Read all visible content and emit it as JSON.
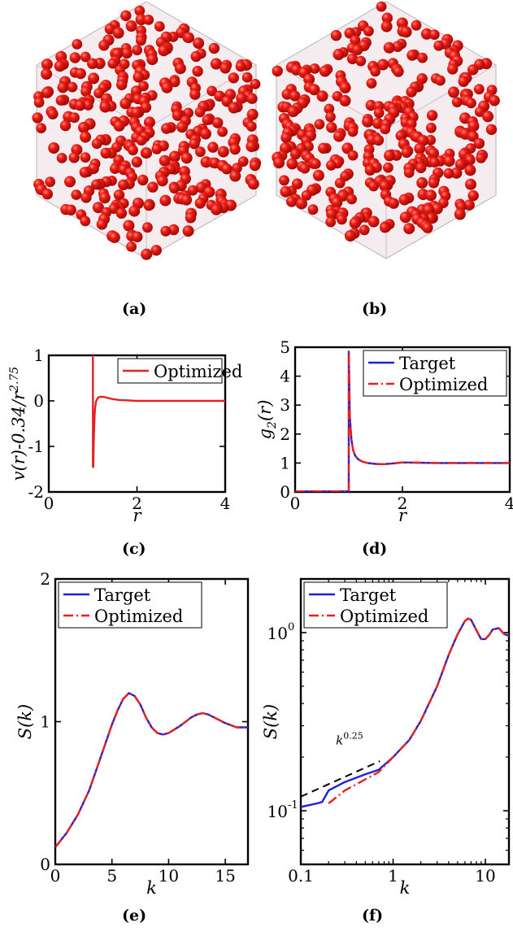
{
  "captions": {
    "a": "(a)",
    "b": "(b)",
    "c": "(c)",
    "d": "(d)",
    "e": "(e)",
    "f": "(f)"
  },
  "colors": {
    "sphere": "#e0110f",
    "target": "#1f1fe0",
    "optimized": "#e82020",
    "guide": "#000000"
  },
  "chart_data": [
    {
      "panel": "c",
      "type": "line",
      "xlabel": "r",
      "ylabel": "v(r)-0.34/r^2.75",
      "ylabel_main": "v(r)-0.34/r",
      "ylabel_exp": "2.75",
      "xlim": [
        0,
        4
      ],
      "ylim": [
        -2,
        1
      ],
      "xticks": [
        0,
        2,
        4
      ],
      "xtick_labels": [
        "0",
        "2",
        "4"
      ],
      "yticks": [
        -2,
        -1,
        0,
        1
      ],
      "ytick_labels": [
        "-2",
        "-1",
        "0",
        "1"
      ],
      "legend": "top-right",
      "series": [
        {
          "name": "Optimized",
          "color": "#e82020",
          "dash": "solid",
          "x": [
            1.0,
            1.0,
            1.01,
            1.02,
            1.03,
            1.04,
            1.05,
            1.07,
            1.1,
            1.13,
            1.17,
            1.22,
            1.28,
            1.35,
            1.45,
            1.6,
            1.8,
            2.0,
            2.5,
            3.0,
            3.5,
            4.0
          ],
          "y": [
            1.0,
            -1.45,
            -1.45,
            -0.9,
            -0.55,
            -0.3,
            -0.15,
            -0.02,
            0.05,
            0.08,
            0.09,
            0.09,
            0.08,
            0.06,
            0.04,
            0.02,
            0.01,
            0.0,
            0.0,
            0.0,
            0.0,
            0.0
          ]
        }
      ]
    },
    {
      "panel": "d",
      "type": "line",
      "xlabel": "r",
      "ylabel": "g2(r)",
      "ylabel_main": "g",
      "ylabel_sub": "2",
      "ylabel_tail": "(r)",
      "xlim": [
        0,
        4
      ],
      "ylim": [
        0,
        5
      ],
      "xticks": [
        0,
        2,
        4
      ],
      "xtick_labels": [
        "0",
        "2",
        "4"
      ],
      "yticks": [
        0,
        1,
        2,
        3,
        4,
        5
      ],
      "ytick_labels": [
        "0",
        "1",
        "2",
        "3",
        "4",
        "5"
      ],
      "legend": "top-right",
      "series": [
        {
          "name": "Target",
          "color": "#1f1fe0",
          "dash": "solid",
          "x": [
            0,
            0.99,
            1.0,
            1.0,
            1.02,
            1.05,
            1.08,
            1.12,
            1.18,
            1.25,
            1.35,
            1.5,
            1.65,
            1.8,
            2.0,
            2.3,
            2.6,
            3.0,
            3.5,
            4.0
          ],
          "y": [
            0.02,
            0.02,
            0.02,
            4.85,
            2.6,
            1.8,
            1.45,
            1.25,
            1.12,
            1.05,
            1.0,
            0.97,
            0.96,
            0.98,
            1.02,
            1.01,
            1.0,
            1.0,
            1.0,
            1.0
          ]
        },
        {
          "name": "Optimized",
          "color": "#e82020",
          "dash": "dashdot",
          "x": [
            0,
            0.99,
            1.0,
            1.0,
            1.02,
            1.05,
            1.08,
            1.12,
            1.18,
            1.25,
            1.35,
            1.5,
            1.65,
            1.8,
            2.0,
            2.3,
            2.6,
            3.0,
            3.5,
            4.0
          ],
          "y": [
            0.02,
            0.02,
            0.02,
            4.85,
            2.6,
            1.8,
            1.45,
            1.25,
            1.12,
            1.05,
            1.0,
            0.97,
            0.96,
            0.98,
            1.02,
            1.01,
            1.0,
            1.0,
            1.0,
            1.0
          ]
        }
      ]
    },
    {
      "panel": "e",
      "type": "line",
      "xlabel": "k",
      "ylabel": "S(k)",
      "xlim": [
        0,
        17
      ],
      "ylim": [
        0,
        2
      ],
      "xticks": [
        0,
        5,
        10,
        15
      ],
      "xtick_labels": [
        "0",
        "5",
        "10",
        "15"
      ],
      "yticks": [
        0,
        1,
        2
      ],
      "ytick_labels": [
        "0",
        "1",
        "2"
      ],
      "legend": "top-left",
      "series": [
        {
          "name": "Target",
          "color": "#1f1fe0",
          "dash": "solid",
          "x": [
            0,
            1,
            2,
            3,
            4,
            5,
            5.5,
            6,
            6.5,
            7,
            7.5,
            8,
            8.5,
            9,
            9.5,
            10,
            11,
            12,
            12.5,
            13,
            13.5,
            14,
            15,
            16,
            17
          ],
          "y": [
            0.12,
            0.22,
            0.35,
            0.52,
            0.75,
            0.98,
            1.08,
            1.16,
            1.2,
            1.18,
            1.12,
            1.03,
            0.96,
            0.92,
            0.91,
            0.92,
            0.97,
            1.03,
            1.05,
            1.06,
            1.05,
            1.03,
            0.99,
            0.96,
            0.96
          ]
        },
        {
          "name": "Optimized",
          "color": "#e82020",
          "dash": "dashdot",
          "x": [
            0,
            1,
            2,
            3,
            4,
            5,
            5.5,
            6,
            6.5,
            7,
            7.5,
            8,
            8.5,
            9,
            9.5,
            10,
            11,
            12,
            12.5,
            13,
            13.5,
            14,
            15,
            16,
            17
          ],
          "y": [
            0.12,
            0.22,
            0.35,
            0.52,
            0.75,
            0.98,
            1.08,
            1.16,
            1.2,
            1.18,
            1.12,
            1.03,
            0.96,
            0.92,
            0.91,
            0.92,
            0.97,
            1.03,
            1.05,
            1.06,
            1.05,
            1.03,
            0.99,
            0.96,
            0.96
          ]
        }
      ]
    },
    {
      "panel": "f",
      "type": "line",
      "xscale": "log",
      "yscale": "log",
      "xlabel": "k",
      "ylabel": "S(k)",
      "xlim": [
        0.1,
        18
      ],
      "ylim": [
        0.05,
        2
      ],
      "xticks": [
        0.1,
        1,
        10
      ],
      "xtick_labels": [
        "0.1",
        "1",
        "10"
      ],
      "yticks": [
        0.1,
        1
      ],
      "ytick_main": [
        "10",
        "10"
      ],
      "ytick_exp": [
        "-1",
        "0"
      ],
      "legend": "top-left",
      "annotation": {
        "base": "k",
        "exp": "0.25"
      },
      "series": [
        {
          "name": "Target",
          "color": "#1f1fe0",
          "dash": "solid",
          "x": [
            0.1,
            0.15,
            0.17,
            0.2,
            0.3,
            0.5,
            0.7,
            1,
            1.5,
            2,
            3,
            4,
            5,
            6,
            6.5,
            7,
            8,
            9,
            10,
            11,
            12,
            14,
            16,
            18
          ],
          "y": [
            0.105,
            0.11,
            0.112,
            0.13,
            0.145,
            0.16,
            0.17,
            0.2,
            0.25,
            0.32,
            0.5,
            0.75,
            0.98,
            1.16,
            1.2,
            1.18,
            1.03,
            0.92,
            0.92,
            0.97,
            1.04,
            1.06,
            0.98,
            0.96
          ]
        },
        {
          "name": "Optimized",
          "color": "#e82020",
          "dash": "dashdot",
          "x": [
            0.2,
            0.3,
            0.5,
            0.7,
            1,
            1.5,
            2,
            3,
            4,
            5,
            6,
            6.5,
            7,
            8,
            9,
            10,
            11,
            12,
            14,
            16,
            18
          ],
          "y": [
            0.11,
            0.13,
            0.15,
            0.165,
            0.2,
            0.25,
            0.32,
            0.5,
            0.75,
            0.98,
            1.16,
            1.2,
            1.18,
            1.03,
            0.92,
            0.92,
            0.97,
            1.04,
            1.06,
            0.98,
            0.96
          ]
        },
        {
          "name": "",
          "role": "guide",
          "color": "#000000",
          "dash": "dash",
          "x": [
            0.1,
            0.72
          ],
          "y": [
            0.12,
            0.19
          ]
        }
      ]
    }
  ]
}
